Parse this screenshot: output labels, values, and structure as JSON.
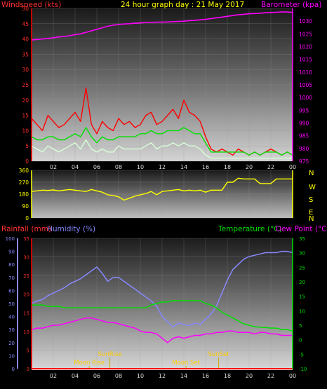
{
  "chart_data": [
    {
      "type": "line",
      "panel": "wind-baro",
      "title": "24 hour graph day : 21 May 2017",
      "ylabel_left": "Windspeed (kts)",
      "ylabel_right": "Barometer (kpa)",
      "ylim_left": [
        0,
        50
      ],
      "ylim_right": [
        975,
        1035
      ],
      "yticks_left": [
        "0",
        "5",
        "10",
        "15",
        "20",
        "25",
        "30",
        "35",
        "40",
        "45",
        "50"
      ],
      "yticks_right": [
        "975",
        "980",
        "985",
        "990",
        "995",
        "1000",
        "1005",
        "1010",
        "1015",
        "1020",
        "1025",
        "1030"
      ],
      "xticks": [
        "02",
        "04",
        "06",
        "08",
        "10",
        "12",
        "14",
        "16",
        "18",
        "20",
        "22",
        "00"
      ],
      "x_hours": [
        0,
        0.5,
        1,
        1.5,
        2,
        2.5,
        3,
        3.5,
        4,
        4.5,
        5,
        5.5,
        6,
        6.5,
        7,
        7.5,
        8,
        8.5,
        9,
        9.5,
        10,
        10.5,
        11,
        11.5,
        12,
        12.5,
        13,
        13.5,
        14,
        14.5,
        15,
        15.5,
        16,
        16.5,
        17,
        17.5,
        18,
        18.5,
        19,
        19.5,
        20,
        20.5,
        21,
        21.5,
        22,
        22.5,
        23,
        23.5,
        24
      ],
      "series": [
        {
          "color": "#ff0000",
          "values": [
            14,
            12,
            10,
            15,
            13,
            11,
            12,
            14,
            16,
            13,
            24,
            12,
            9,
            13,
            11,
            10,
            14,
            12,
            13,
            11,
            12,
            15,
            16,
            12,
            13,
            15,
            17,
            14,
            20,
            16,
            15,
            13,
            8,
            4,
            3,
            4,
            3,
            2,
            4,
            3,
            2,
            3,
            2,
            3,
            4,
            3,
            2,
            3,
            2
          ]
        },
        {
          "color": "#00e000",
          "values": [
            8,
            7,
            7,
            8,
            8,
            7,
            7,
            8,
            9,
            8,
            11,
            8,
            6,
            8,
            7,
            7,
            8,
            8,
            8,
            8,
            9,
            9,
            10,
            9,
            9,
            10,
            10,
            10,
            11,
            10,
            9,
            9,
            6,
            3,
            3,
            3,
            3,
            3,
            3,
            3,
            2,
            3,
            2,
            3,
            3,
            3,
            2,
            3,
            2
          ]
        },
        {
          "color": "#d8ffd8",
          "values": [
            5,
            4,
            3,
            5,
            4,
            3,
            4,
            5,
            6,
            4,
            7,
            4,
            3,
            4,
            3,
            3,
            5,
            4,
            4,
            4,
            4,
            5,
            6,
            4,
            5,
            5,
            6,
            5,
            6,
            5,
            5,
            4,
            2,
            1,
            1,
            1,
            1,
            1,
            1,
            1,
            1,
            1,
            1,
            1,
            1,
            1,
            1,
            1,
            1
          ]
        },
        {
          "color": "#ff00ff",
          "axis": "right",
          "values": [
            1022.6,
            1022.8,
            1023.0,
            1023.2,
            1023.5,
            1023.8,
            1024.0,
            1024.3,
            1024.7,
            1025.0,
            1025.6,
            1026.2,
            1026.8,
            1027.4,
            1028.0,
            1028.4,
            1028.7,
            1028.9,
            1029.0,
            1029.2,
            1029.3,
            1029.5,
            1029.5,
            1029.6,
            1029.6,
            1029.7,
            1029.8,
            1029.9,
            1030.0,
            1030.2,
            1030.3,
            1030.5,
            1030.7,
            1031.0,
            1031.3,
            1031.6,
            1031.9,
            1032.2,
            1032.5,
            1032.7,
            1032.9,
            1033.0,
            1033.1,
            1033.3,
            1033.4,
            1033.5,
            1033.6,
            1033.6,
            1033.4
          ]
        }
      ]
    },
    {
      "type": "line",
      "panel": "wind-direction",
      "ylim": [
        0,
        360
      ],
      "yticks": [
        "0",
        "90",
        "180",
        "270",
        "360"
      ],
      "compass": [
        "N",
        "W",
        "S",
        "E",
        "N"
      ],
      "x_hours": [
        0,
        0.5,
        1,
        1.5,
        2,
        2.5,
        3,
        3.5,
        4,
        4.5,
        5,
        5.5,
        6,
        6.5,
        7,
        7.5,
        8,
        8.5,
        9,
        9.5,
        10,
        10.5,
        11,
        11.5,
        12,
        12.5,
        13,
        13.5,
        14,
        14.5,
        15,
        15.5,
        16,
        16.5,
        17,
        17.5,
        18,
        18.5,
        19,
        19.5,
        20,
        20.5,
        21,
        21.5,
        22,
        22.5,
        23,
        23.5,
        24
      ],
      "series": [
        {
          "color": "#ffff00",
          "values": [
            200,
            205,
            210,
            208,
            212,
            205,
            210,
            215,
            210,
            205,
            200,
            215,
            205,
            195,
            175,
            170,
            160,
            135,
            150,
            165,
            175,
            185,
            200,
            175,
            200,
            205,
            210,
            215,
            205,
            210,
            205,
            210,
            195,
            210,
            210,
            210,
            270,
            270,
            300,
            295,
            295,
            295,
            260,
            260,
            260,
            295,
            295,
            295,
            295
          ]
        }
      ]
    },
    {
      "type": "line",
      "panel": "rain-humidity-temp",
      "ylabel_left_1": "Rainfall (mm)",
      "ylabel_left_2": "Humidity (%)",
      "ylabel_right_1": "Temperature (°C)",
      "ylabel_right_2": "Dew Point (°C)",
      "ylim_humidity": [
        0,
        100
      ],
      "ylim_rain": [
        0,
        35
      ],
      "ylim_temp": [
        -10,
        35
      ],
      "yticks_humidity": [
        "0",
        "10",
        "20",
        "30",
        "40",
        "50",
        "60",
        "70",
        "80",
        "90",
        "100"
      ],
      "yticks_rain": [
        "0",
        "5",
        "10",
        "15",
        "20",
        "25",
        "30",
        "35"
      ],
      "yticks_temp": [
        "-10",
        "-5",
        "0",
        "5",
        "10",
        "15",
        "20",
        "25",
        "30",
        "35"
      ],
      "xticks": [
        "02",
        "04",
        "06",
        "08",
        "10",
        "12",
        "14",
        "16",
        "18",
        "20",
        "22",
        "00"
      ],
      "events": [
        {
          "label": "Moon Rise",
          "hour": 5.3
        },
        {
          "label": "SunRise",
          "hour": 7.2
        },
        {
          "label": "Moon Set",
          "hour": 14.2
        },
        {
          "label": "SunSet",
          "hour": 17.2
        }
      ],
      "x_hours": [
        0,
        0.5,
        1,
        1.5,
        2,
        2.5,
        3,
        3.5,
        4,
        4.5,
        5,
        5.5,
        6,
        6.5,
        7,
        7.5,
        8,
        8.5,
        9,
        9.5,
        10,
        10.5,
        11,
        11.5,
        12,
        12.5,
        13,
        13.5,
        14,
        14.5,
        15,
        15.5,
        16,
        16.5,
        17,
        17.5,
        18,
        18.5,
        19,
        19.5,
        20,
        20.5,
        21,
        21.5,
        22,
        22.5,
        23,
        23.5,
        24
      ],
      "series": [
        {
          "color": "#8888ff",
          "axis": "humidity",
          "values": [
            50,
            52,
            53,
            56,
            58,
            60,
            62,
            65,
            67,
            69,
            72,
            75,
            78,
            73,
            67,
            70,
            70,
            67,
            64,
            61,
            58,
            55,
            52,
            48,
            40,
            36,
            32,
            35,
            34,
            33,
            35,
            34,
            38,
            42,
            48,
            58,
            68,
            76,
            80,
            84,
            86,
            87,
            88,
            89,
            89,
            89,
            90,
            90,
            89
          ]
        },
        {
          "color": "#00e000",
          "axis": "temp",
          "values": [
            12,
            12,
            12,
            11.5,
            11.5,
            11.5,
            11,
            11,
            11,
            11,
            11,
            11,
            11,
            11,
            11,
            11,
            11,
            11,
            11,
            11,
            11,
            11,
            12,
            12.5,
            13,
            13,
            13.5,
            13.5,
            13.5,
            13.5,
            13.5,
            13.5,
            12.5,
            12,
            11,
            9.5,
            8.5,
            7.5,
            6.5,
            5.5,
            5,
            4.5,
            4.3,
            4.2,
            4,
            4,
            3.5,
            3.5,
            3
          ]
        },
        {
          "color": "#ff00ff",
          "axis": "temp",
          "values": [
            3.5,
            4,
            4,
            4.5,
            5,
            5,
            5.5,
            6,
            6.5,
            7,
            7.5,
            7.5,
            7,
            6.5,
            6,
            6,
            5.5,
            5,
            4.5,
            4,
            3,
            2.5,
            2.5,
            2,
            0.5,
            -1,
            0.5,
            1,
            0.5,
            1,
            1.5,
            1.5,
            2,
            2,
            2.5,
            2.5,
            3,
            3,
            2.5,
            2.5,
            2.5,
            2,
            2.5,
            2.5,
            2,
            2,
            1.5,
            1.5,
            1.5
          ]
        },
        {
          "color": "#ff0000",
          "axis": "rain",
          "values": [
            0,
            0,
            0,
            0,
            0,
            0,
            0,
            0,
            0,
            0,
            0,
            0,
            0,
            0,
            0,
            0,
            0,
            0,
            0,
            0,
            0,
            0,
            0,
            0,
            0,
            0,
            0,
            0,
            0,
            0,
            0,
            0,
            0,
            0,
            0,
            0,
            0,
            0,
            0,
            0,
            0,
            0,
            0,
            0,
            0,
            0,
            0,
            0,
            0
          ]
        }
      ]
    }
  ]
}
